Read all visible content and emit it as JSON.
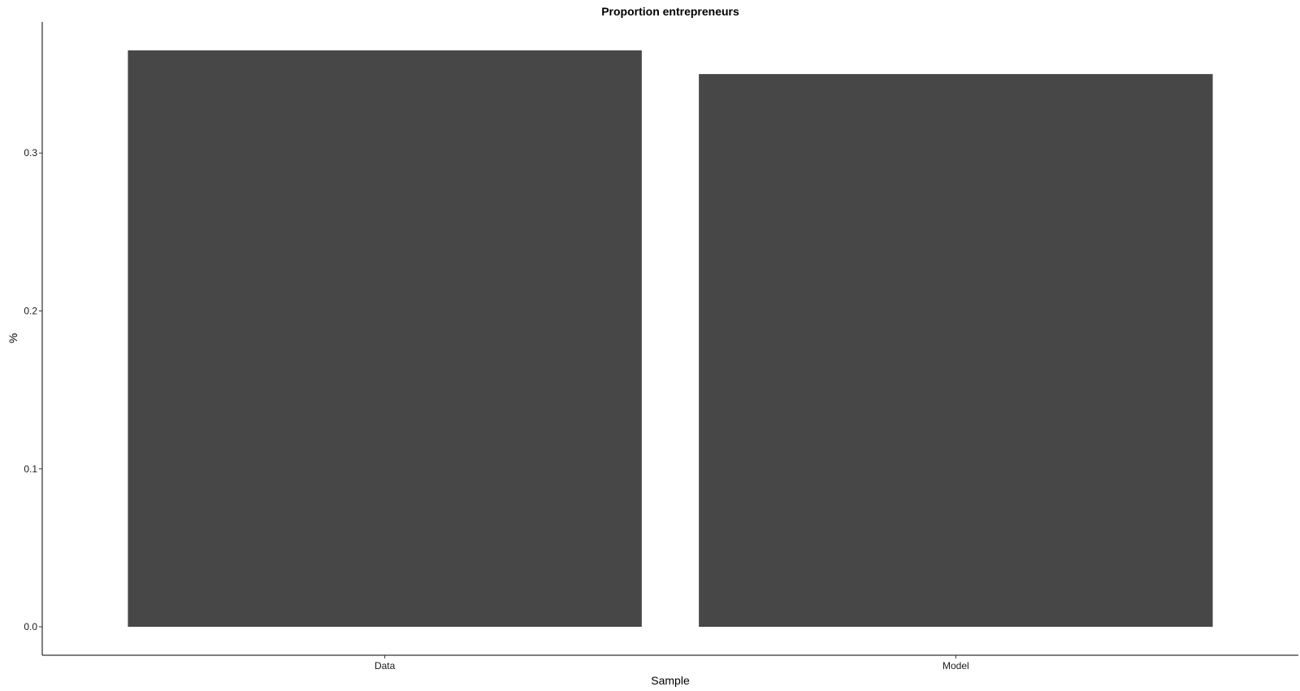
{
  "chart_data": {
    "type": "bar",
    "title": "Proportion entrepreneurs",
    "xlabel": "Sample",
    "ylabel": "%",
    "categories": [
      "Data",
      "Model"
    ],
    "values": [
      0.365,
      0.35
    ],
    "ylim": [
      -0.018,
      0.383
    ],
    "yticks": [
      0.0,
      0.1,
      0.2,
      0.3
    ],
    "ytick_labels": [
      "0.0",
      "0.1",
      "0.2",
      "0.3"
    ],
    "bar_color": "#474747",
    "grid": false,
    "legend": "none"
  }
}
